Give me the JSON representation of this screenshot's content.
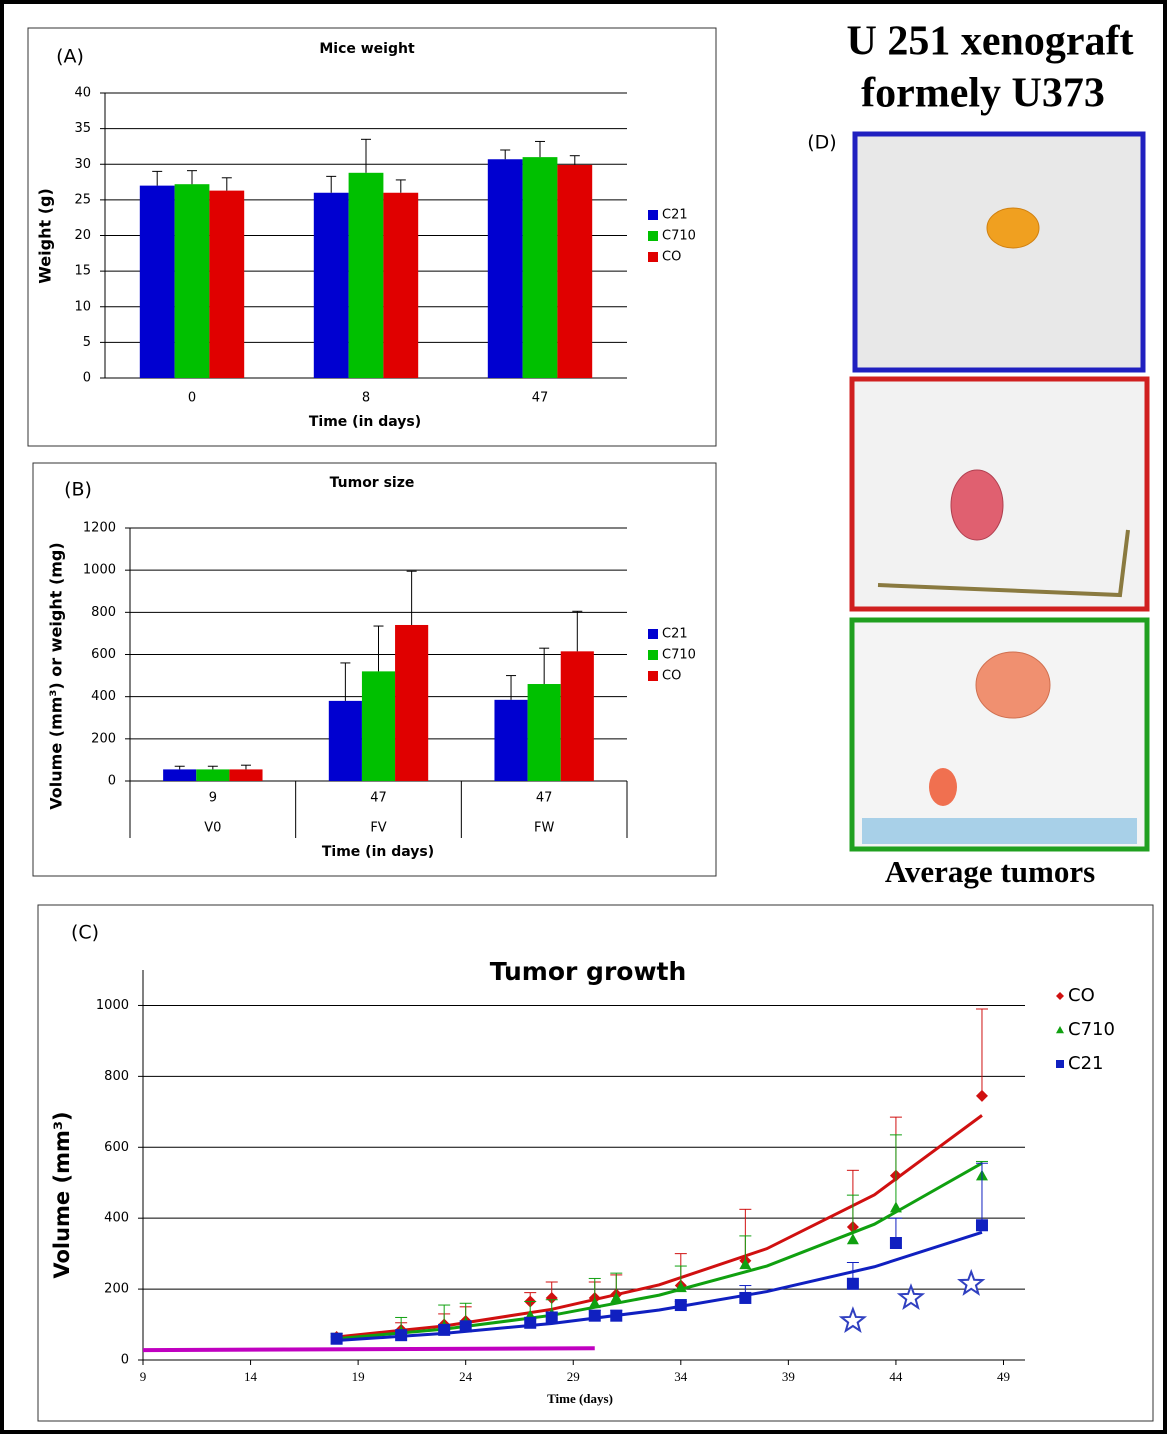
{
  "header": {
    "title_lines": [
      "U 251 xenograft",
      "formely U373"
    ]
  },
  "panel_d": {
    "label": "(D)",
    "caption": "Average tumors"
  },
  "chart_data": [
    {
      "type": "bar",
      "panel": "(A)",
      "title": "Mice weight",
      "x_label": "Time (in days)",
      "y_label": "Weight (g)",
      "categories": [
        "0",
        "8",
        "47"
      ],
      "series": [
        {
          "name": "C21",
          "color": "#0000d0",
          "values": [
            27,
            26,
            30.7
          ],
          "errors": [
            2,
            2.3,
            1.3
          ]
        },
        {
          "name": "C710",
          "color": "#00c000",
          "values": [
            27.2,
            28.8,
            31
          ],
          "errors": [
            1.9,
            4.7,
            2.2
          ]
        },
        {
          "name": "CO",
          "color": "#e00000",
          "values": [
            26.3,
            26,
            29.9
          ],
          "errors": [
            1.8,
            1.8,
            1.3
          ]
        }
      ],
      "ylim": [
        0,
        40
      ],
      "yticks": [
        0,
        5,
        10,
        15,
        20,
        25,
        30,
        35,
        40
      ],
      "grid": true
    },
    {
      "type": "bar",
      "panel": "(B)",
      "title": "Tumor size",
      "x_label": "Time (in days)",
      "y_label": "Volume (mm³) or weight (mg)",
      "categories": [
        "9",
        "47",
        "47"
      ],
      "groups": [
        "V0",
        "FV",
        "FW"
      ],
      "series": [
        {
          "name": "C21",
          "color": "#0000d0",
          "values": [
            55,
            380,
            385
          ],
          "errors": [
            15,
            180,
            115
          ]
        },
        {
          "name": "C710",
          "color": "#00c000",
          "values": [
            55,
            520,
            460
          ],
          "errors": [
            15,
            215,
            170
          ]
        },
        {
          "name": "CO",
          "color": "#e00000",
          "values": [
            55,
            740,
            615
          ],
          "errors": [
            20,
            255,
            190
          ]
        }
      ],
      "ylim": [
        0,
        1200
      ],
      "yticks": [
        0,
        200,
        400,
        600,
        800,
        1000,
        1200
      ],
      "grid": true
    },
    {
      "type": "scatter",
      "panel": "(C)",
      "title": "Tumor growth",
      "x_label": "Time (days)",
      "y_label": "Volume (mm³)",
      "x": [
        18,
        21,
        23,
        24,
        27,
        28,
        30,
        31,
        34,
        37,
        42,
        44,
        48
      ],
      "trend_x": [
        18,
        23,
        28,
        33,
        38,
        43,
        48
      ],
      "series": [
        {
          "name": "CO",
          "color": "#d01010",
          "marker": "diamond",
          "values": [
            65,
            85,
            100,
            110,
            165,
            175,
            175,
            185,
            210,
            280,
            375,
            520,
            745
          ],
          "errors": [
            10,
            20,
            30,
            40,
            25,
            45,
            45,
            55,
            90,
            145,
            160,
            165,
            245
          ],
          "trend_values": [
            65,
            96,
            143,
            212,
            314,
            466,
            690
          ]
        },
        {
          "name": "C710",
          "color": "#10a010",
          "marker": "triangle",
          "values": [
            60,
            80,
            95,
            105,
            125,
            130,
            160,
            175,
            205,
            270,
            340,
            430,
            520
          ],
          "errors": [
            15,
            40,
            60,
            55,
            40,
            40,
            70,
            70,
            60,
            80,
            125,
            205,
            40
          ],
          "trend_values": [
            60,
            87,
            126,
            183,
            265,
            383,
            555
          ]
        },
        {
          "name": "C21",
          "color": "#1020c0",
          "marker": "square",
          "values": [
            60,
            70,
            85,
            95,
            105,
            120,
            125,
            125,
            155,
            175,
            215,
            330,
            380
          ],
          "errors": [
            5,
            10,
            15,
            10,
            10,
            15,
            15,
            15,
            10,
            35,
            60,
            70,
            175
          ],
          "trend_values": [
            55,
            75,
            103,
            141,
            193,
            263,
            360
          ]
        }
      ],
      "baseline": {
        "color": "#c000c0",
        "x": [
          9,
          30
        ],
        "values": [
          28,
          33
        ]
      },
      "stars": {
        "color": "#3040c0",
        "x": [
          42,
          44.7,
          47.5
        ],
        "values": [
          110,
          175,
          215
        ]
      },
      "xlim": [
        9,
        50
      ],
      "xticks": [
        9,
        14,
        19,
        24,
        29,
        34,
        39,
        44,
        49
      ],
      "ylim": [
        0,
        1100
      ],
      "yticks": [
        0,
        200,
        400,
        600,
        800,
        1000
      ],
      "grid": true
    }
  ]
}
